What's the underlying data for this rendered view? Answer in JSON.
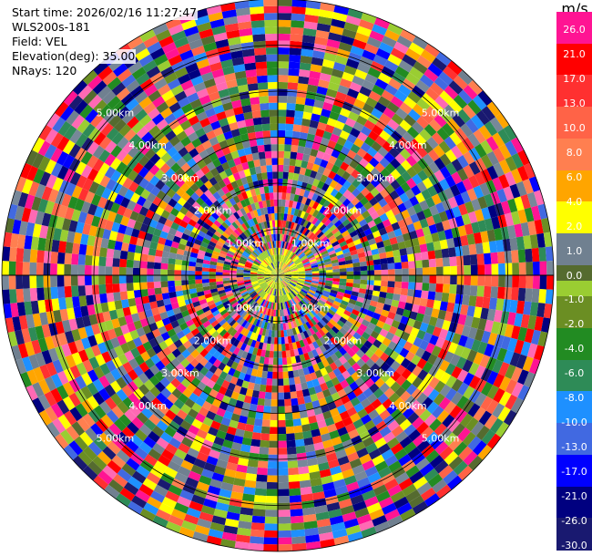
{
  "info": {
    "start_time": "Start time: 2026/02/16 11:27:47",
    "instrument": "WLS200s-181",
    "field": "Field: VEL",
    "elevation": "Elevation(deg): 35.00",
    "nrays": "NRays: 120"
  },
  "colorbar": {
    "unit": "m/s",
    "labels": [
      "26.0",
      "21.0",
      "17.0",
      "13.0",
      "10.0",
      "8.0",
      "6.0",
      "4.0",
      "2.0",
      "1.0",
      "0.0",
      "-1.0",
      "-2.0",
      "-4.0",
      "-6.0",
      "-8.0",
      "-10.0",
      "-13.0",
      "-17.0",
      "-21.0",
      "-26.0",
      "-30.0"
    ],
    "colors": [
      "#ff1493",
      "#ff1493",
      "#ff0000",
      "#ff0000",
      "#ff3030",
      "#ff3030",
      "#ff6347",
      "#ff6347",
      "#ff7f50",
      "#ff7f50",
      "#ffa500",
      "#ffa500",
      "#ffff00",
      "#ffff00",
      "#708090",
      "#708090",
      "#556b2f",
      "#9acd32",
      "#6b8e23",
      "#6b8e23",
      "#228b22",
      "#228b22",
      "#2e8b57",
      "#2e8b57",
      "#1e90ff",
      "#1e90ff",
      "#4169e1",
      "#4169e1",
      "#0000ff",
      "#0000ff",
      "#000080",
      "#000080",
      "#191970",
      "#191970"
    ]
  },
  "chart_data": {
    "type": "heatmap",
    "subtype": "ppi-polar",
    "field": "VEL",
    "units": "m/s",
    "nrays": 120,
    "max_range_km": 6.0,
    "range_rings_km": [
      1,
      2,
      3,
      4,
      5,
      6
    ],
    "ring_labels": [
      "1.00km",
      "2.00km",
      "3.00km",
      "4.00km",
      "5.00km"
    ],
    "color_levels": [
      -30,
      -26,
      -21,
      -17,
      -13,
      -10,
      -8,
      -6,
      -4,
      -2,
      -1,
      0,
      1,
      2,
      4,
      6,
      8,
      10,
      13,
      17,
      21,
      26
    ],
    "palette": [
      "#191970",
      "#000080",
      "#0000ff",
      "#4169e1",
      "#1e90ff",
      "#2e8b57",
      "#228b22",
      "#6b8e23",
      "#9acd32",
      "#556b2f",
      "#708090",
      "#778899",
      "#ffff00",
      "#ffa500",
      "#ff7f50",
      "#ff6347",
      "#ff3030",
      "#ff0000",
      "#ff1493",
      "#ff69b4"
    ],
    "seed": 181
  }
}
